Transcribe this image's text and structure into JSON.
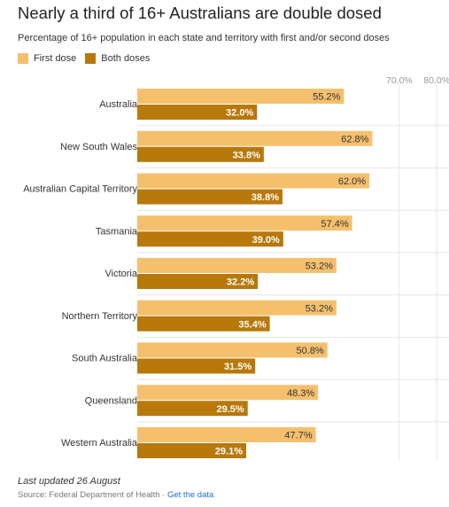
{
  "title": "Nearly a third of 16+ Australians are double dosed",
  "subtitle": "Percentage of 16+ population in each state and territory with first and/or second doses",
  "legend": [
    {
      "label": "First dose",
      "color": "#f5c06e"
    },
    {
      "label": "Both doses",
      "color": "#b8780a"
    }
  ],
  "footer": {
    "updated": "Last updated 26 August",
    "source": "Source: Federal Department of Health",
    "separator": " · ",
    "link": "Get the data"
  },
  "chart_data": {
    "type": "bar",
    "orientation": "horizontal",
    "categories": [
      "Australia",
      "New South Wales",
      "Australian Capital Territory",
      "Tasmania",
      "Victoria",
      "Northern Territory",
      "South Australia",
      "Queensland",
      "Western Australia"
    ],
    "series": [
      {
        "name": "First dose",
        "color": "#f5c06e",
        "values": [
          55.2,
          62.8,
          62.0,
          57.4,
          53.2,
          53.2,
          50.8,
          48.3,
          47.7
        ]
      },
      {
        "name": "Both doses",
        "color": "#b8780a",
        "values": [
          32.0,
          33.8,
          38.8,
          39.0,
          32.2,
          35.4,
          31.5,
          29.5,
          29.1
        ]
      }
    ],
    "xlim": [
      0,
      80
    ],
    "tick_values": [
      70,
      80
    ],
    "tick_labels": [
      "70.0%",
      "80.0%"
    ],
    "gridlines": true,
    "legend_position": "top-left",
    "data_labels": true
  }
}
